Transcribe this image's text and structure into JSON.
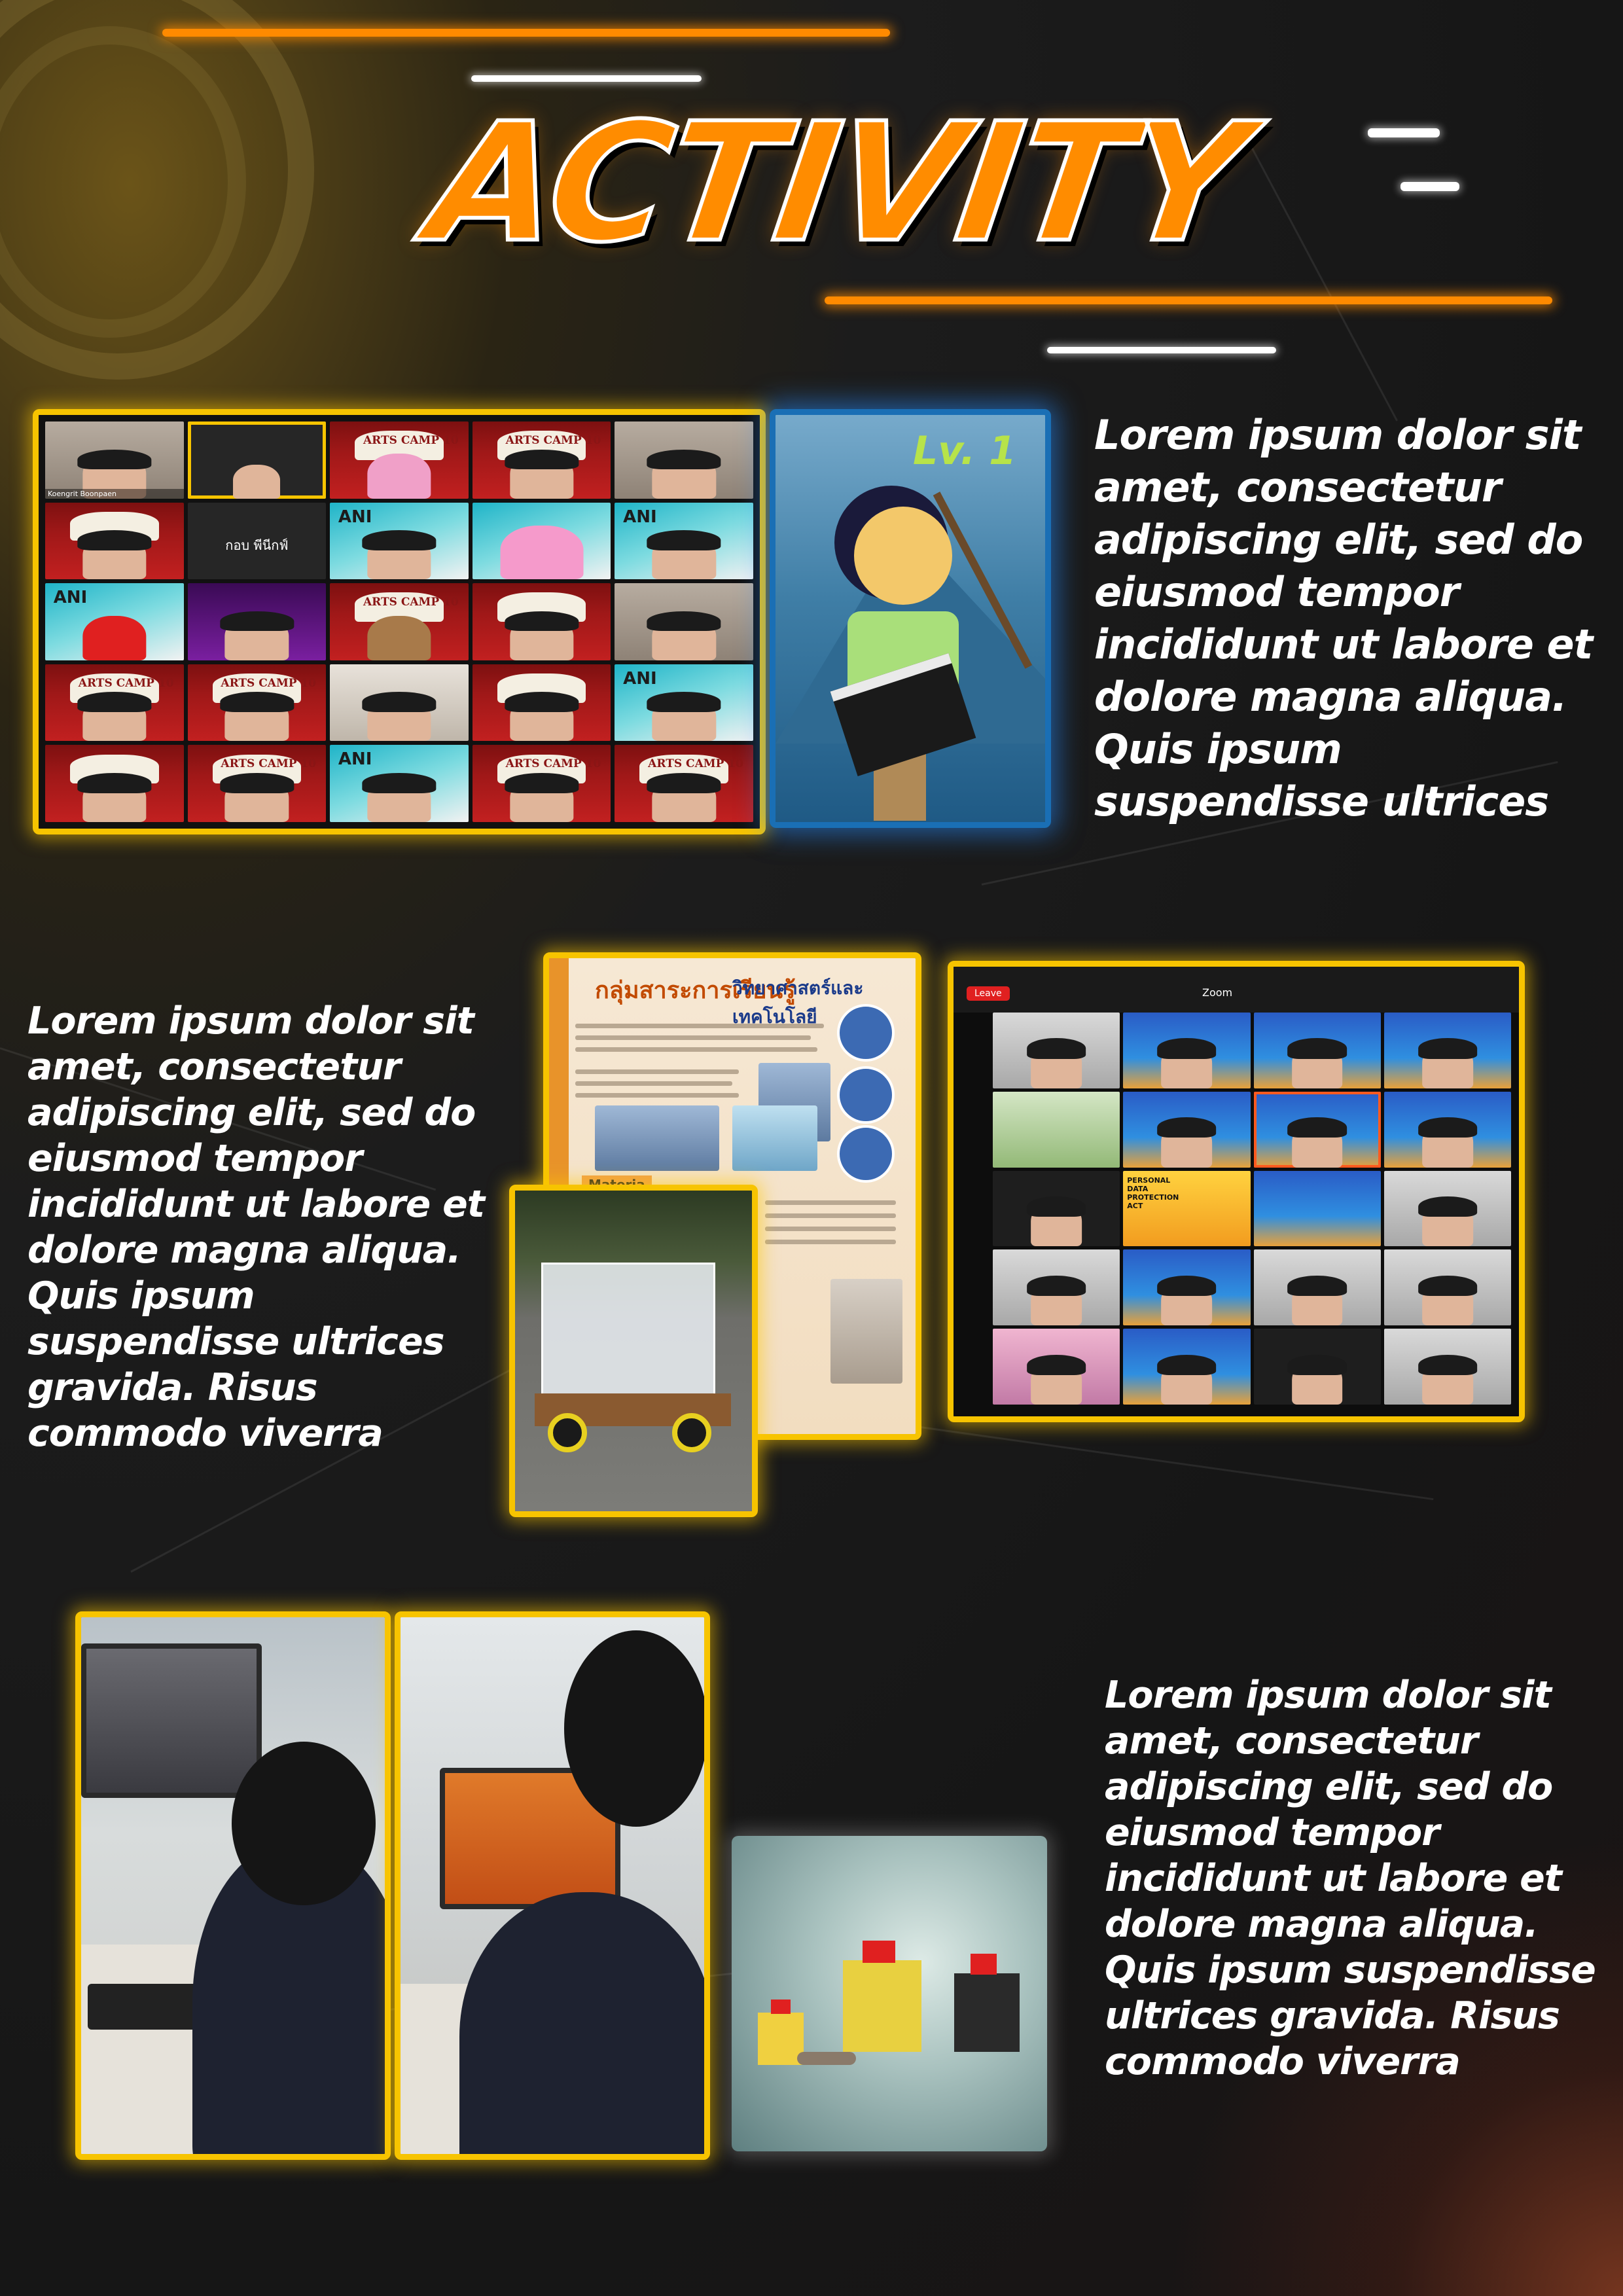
{
  "title": "ACTIVITY",
  "paragraphs": {
    "p1": "Lorem ipsum dolor sit amet, consectetur adipiscing elit, sed do eiusmod tempor incididunt ut labore et dolore magna aliqua. Quis ipsum suspendisse ultrices",
    "p2": "Lorem ipsum dolor sit amet, consectetur adipiscing elit, sed do eiusmod tempor incididunt ut labore et dolore magna aliqua. Quis ipsum suspendisse ultrices gravida. Risus commodo viverra",
    "p3": "Lorem ipsum dolor sit amet, consectetur adipiscing elit, sed do eiusmod tempor incididunt ut labore et dolore magna aliqua. Quis ipsum suspendisse ultrices gravida. Risus commodo viverra"
  },
  "zoom_grid_1": {
    "tile_text_arts": "ARTS CAMP 10",
    "tile_text_ani": "ANI",
    "camera_off_name": "กอบ พีนีกฟ์",
    "first_name": "Koengrit Boonpaen"
  },
  "character_card": {
    "level_text": "Lv. 1"
  },
  "poster": {
    "heading": "กลุ่มสาระการเรียนรู้",
    "heading2": "วิทยาศาสตร์และเทคโนโลยี",
    "materials_label": "Materia"
  },
  "zoom_gallery_2": {
    "leave_label": "Leave",
    "app_label": "Zoom",
    "pdpa_text": "PERSONAL DATA PROTECTION ACT"
  },
  "colors": {
    "accent_orange": "#ff8a00",
    "frame_yellow": "#f7c400",
    "glow_blue": "#1a6fb5"
  }
}
